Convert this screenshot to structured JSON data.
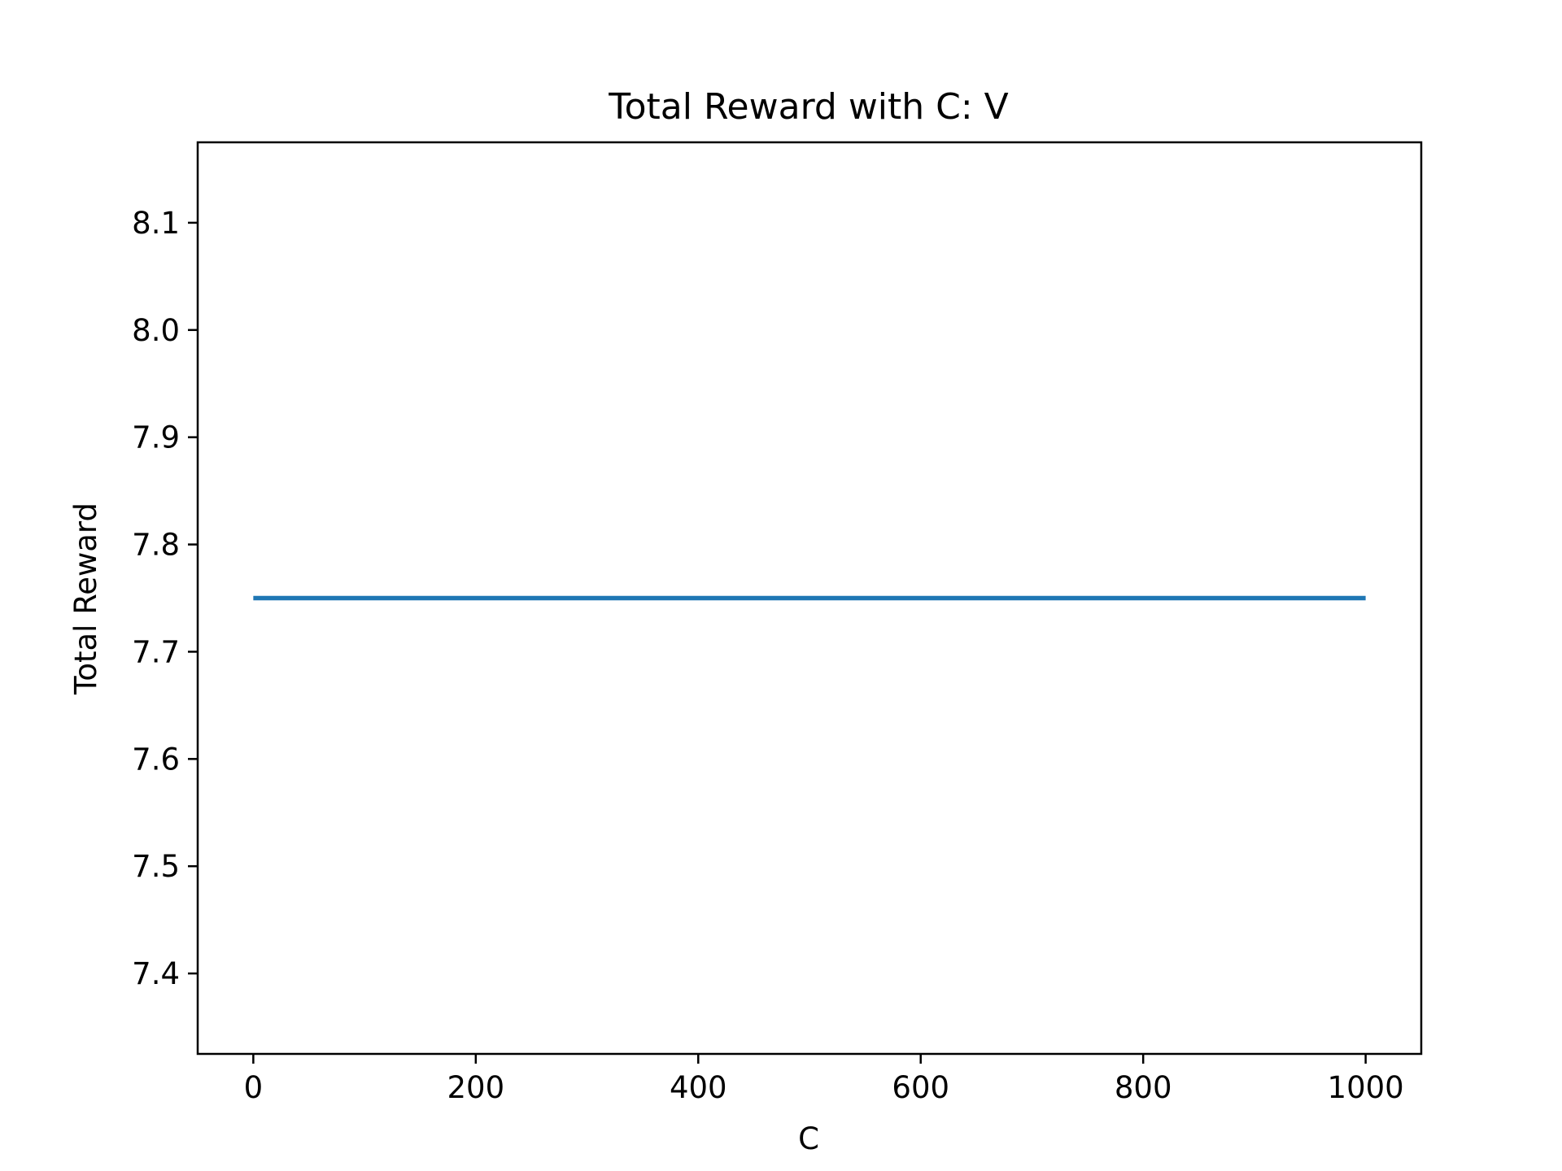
{
  "chart_data": {
    "type": "line",
    "title": "Total Reward with C: V",
    "xlabel": "C",
    "ylabel": "Total Reward",
    "xlim": [
      -50,
      1050
    ],
    "ylim": [
      7.325,
      8.175
    ],
    "x_ticks": [
      0,
      200,
      400,
      600,
      800,
      1000
    ],
    "x_tick_labels": [
      "0",
      "200",
      "400",
      "600",
      "800",
      "1000"
    ],
    "y_ticks": [
      7.4,
      7.5,
      7.6,
      7.7,
      7.8,
      7.9,
      8.0,
      8.1
    ],
    "y_tick_labels": [
      "7.4",
      "7.5",
      "7.6",
      "7.7",
      "7.8",
      "7.9",
      "8.0",
      "8.1"
    ],
    "grid": false,
    "series": [
      {
        "x": [
          0,
          1000
        ],
        "values": [
          7.75,
          7.75
        ],
        "color": "#1f77b4"
      }
    ]
  }
}
